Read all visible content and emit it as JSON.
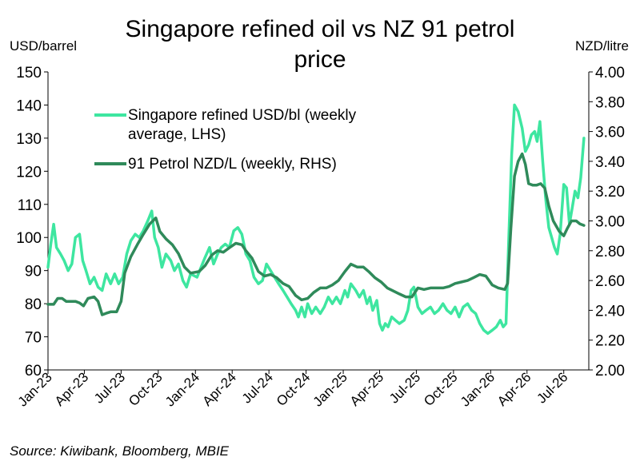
{
  "chart_data": {
    "type": "line",
    "title": "Singapore refined oil vs NZ 91 petrol price",
    "title_lines": [
      "Singapore refined oil vs NZ 91 petrol",
      "price"
    ],
    "ylabel_left": "USD/barrel",
    "ylabel_right": "NZD/litre",
    "ylim_left": [
      60,
      150
    ],
    "ylim_right": [
      2.0,
      4.0
    ],
    "yticks_left": [
      "60",
      "70",
      "80",
      "90",
      "100",
      "110",
      "120",
      "130",
      "140",
      "150"
    ],
    "yticks_right": [
      "2.00",
      "2.20",
      "2.40",
      "2.60",
      "2.80",
      "3.00",
      "3.20",
      "3.40",
      "3.60",
      "3.80",
      "4.00"
    ],
    "x_start": "2023-01",
    "x_end": "2026-09",
    "xticks": [
      "Jan-23",
      "Apr-23",
      "Jul-23",
      "Oct-23",
      "Jan-24",
      "Apr-24",
      "Jul-24",
      "Oct-24",
      "Jan-25",
      "Apr-25",
      "Jul-25",
      "Oct-25",
      "Jan-26",
      "Apr-26",
      "Jul-26"
    ],
    "legend": [
      "Singapore refined USD/bl (weekly average, LHS)",
      "91 Petrol NZD/L (weekly, RHS)"
    ],
    "legend_lines": [
      [
        "Singapore refined USD/bl (weekly",
        "average, LHS)"
      ],
      [
        "91 Petrol NZD/L (weekly, RHS)"
      ]
    ],
    "grid": false,
    "legend_position": "top-left",
    "series": [
      {
        "name": "Singapore refined USD/bl (weekly average, LHS)",
        "axis": "left",
        "color": "#3ee6a0",
        "points": [
          [
            "2023-01-01",
            91
          ],
          [
            "2023-01-08",
            98
          ],
          [
            "2023-01-15",
            104
          ],
          [
            "2023-01-22",
            97
          ],
          [
            "2023-02-01",
            95
          ],
          [
            "2023-02-10",
            93
          ],
          [
            "2023-02-20",
            90
          ],
          [
            "2023-03-01",
            92
          ],
          [
            "2023-03-10",
            100
          ],
          [
            "2023-03-20",
            101
          ],
          [
            "2023-03-28",
            93
          ],
          [
            "2023-04-05",
            90
          ],
          [
            "2023-04-15",
            86
          ],
          [
            "2023-04-25",
            88
          ],
          [
            "2023-05-05",
            85
          ],
          [
            "2023-05-15",
            84
          ],
          [
            "2023-05-25",
            89
          ],
          [
            "2023-06-05",
            86
          ],
          [
            "2023-06-15",
            89
          ],
          [
            "2023-06-25",
            86
          ],
          [
            "2023-07-05",
            88
          ],
          [
            "2023-07-15",
            95
          ],
          [
            "2023-07-25",
            99
          ],
          [
            "2023-08-05",
            101
          ],
          [
            "2023-08-15",
            100
          ],
          [
            "2023-08-25",
            102
          ],
          [
            "2023-09-05",
            105
          ],
          [
            "2023-09-15",
            108
          ],
          [
            "2023-09-22",
            100
          ],
          [
            "2023-10-01",
            97
          ],
          [
            "2023-10-10",
            91
          ],
          [
            "2023-10-20",
            95
          ],
          [
            "2023-11-01",
            93
          ],
          [
            "2023-11-10",
            90
          ],
          [
            "2023-11-20",
            92
          ],
          [
            "2023-12-01",
            87
          ],
          [
            "2023-12-10",
            85
          ],
          [
            "2023-12-20",
            89
          ],
          [
            "2024-01-05",
            88
          ],
          [
            "2024-01-15",
            91
          ],
          [
            "2024-01-25",
            94
          ],
          [
            "2024-02-05",
            97
          ],
          [
            "2024-02-15",
            92
          ],
          [
            "2024-02-25",
            95
          ],
          [
            "2024-03-05",
            97
          ],
          [
            "2024-03-15",
            98
          ],
          [
            "2024-03-25",
            97
          ],
          [
            "2024-04-05",
            102
          ],
          [
            "2024-04-15",
            103
          ],
          [
            "2024-04-25",
            101
          ],
          [
            "2024-05-05",
            95
          ],
          [
            "2024-05-15",
            93
          ],
          [
            "2024-05-25",
            88
          ],
          [
            "2024-06-05",
            86
          ],
          [
            "2024-06-15",
            87
          ],
          [
            "2024-06-25",
            92
          ],
          [
            "2024-07-05",
            90
          ],
          [
            "2024-07-15",
            88
          ],
          [
            "2024-07-25",
            86
          ],
          [
            "2024-08-05",
            84
          ],
          [
            "2024-08-15",
            82
          ],
          [
            "2024-08-25",
            80
          ],
          [
            "2024-09-05",
            78
          ],
          [
            "2024-09-12",
            76
          ],
          [
            "2024-09-20",
            79
          ],
          [
            "2024-09-28",
            76
          ],
          [
            "2024-10-05",
            80
          ],
          [
            "2024-10-15",
            77
          ],
          [
            "2024-10-25",
            79
          ],
          [
            "2024-11-05",
            77
          ],
          [
            "2024-11-15",
            79
          ],
          [
            "2024-11-25",
            82
          ],
          [
            "2024-12-05",
            80
          ],
          [
            "2024-12-15",
            82
          ],
          [
            "2024-12-25",
            80
          ],
          [
            "2025-01-05",
            84
          ],
          [
            "2025-01-12",
            82
          ],
          [
            "2025-01-20",
            86
          ],
          [
            "2025-02-01",
            84
          ],
          [
            "2025-02-10",
            82
          ],
          [
            "2025-02-20",
            84
          ],
          [
            "2025-03-01",
            80
          ],
          [
            "2025-03-08",
            82
          ],
          [
            "2025-03-15",
            78
          ],
          [
            "2025-03-25",
            81
          ],
          [
            "2025-04-01",
            74
          ],
          [
            "2025-04-08",
            72
          ],
          [
            "2025-04-15",
            74
          ],
          [
            "2025-04-22",
            73
          ],
          [
            "2025-05-01",
            76
          ],
          [
            "2025-05-10",
            75
          ],
          [
            "2025-05-20",
            74
          ],
          [
            "2025-06-01",
            75
          ],
          [
            "2025-06-10",
            78
          ],
          [
            "2025-06-18",
            84
          ],
          [
            "2025-06-25",
            85
          ],
          [
            "2025-07-05",
            79
          ],
          [
            "2025-07-15",
            77
          ],
          [
            "2025-07-25",
            78
          ],
          [
            "2025-08-05",
            79
          ],
          [
            "2025-08-15",
            77
          ],
          [
            "2025-08-25",
            78
          ],
          [
            "2025-09-05",
            80
          ],
          [
            "2025-09-15",
            78
          ],
          [
            "2025-09-25",
            77
          ],
          [
            "2025-10-05",
            79
          ],
          [
            "2025-10-15",
            76
          ],
          [
            "2025-10-25",
            79
          ],
          [
            "2025-11-05",
            80
          ],
          [
            "2025-11-15",
            78
          ],
          [
            "2025-11-25",
            77
          ],
          [
            "2025-12-05",
            74
          ],
          [
            "2025-12-15",
            72
          ],
          [
            "2025-12-25",
            71
          ],
          [
            "2026-01-05",
            72
          ],
          [
            "2026-01-15",
            73
          ],
          [
            "2026-01-25",
            75
          ],
          [
            "2026-02-01",
            73
          ],
          [
            "2026-02-08",
            74
          ],
          [
            "2026-02-15",
            100
          ],
          [
            "2026-02-22",
            125
          ],
          [
            "2026-03-01",
            140
          ],
          [
            "2026-03-10",
            138
          ],
          [
            "2026-03-20",
            133
          ],
          [
            "2026-03-28",
            126
          ],
          [
            "2026-04-05",
            128
          ],
          [
            "2026-04-12",
            131
          ],
          [
            "2026-04-20",
            132
          ],
          [
            "2026-04-26",
            129
          ],
          [
            "2026-05-03",
            135
          ],
          [
            "2026-05-10",
            123
          ],
          [
            "2026-05-17",
            112
          ],
          [
            "2026-05-25",
            103
          ],
          [
            "2026-06-01",
            100
          ],
          [
            "2026-06-08",
            97
          ],
          [
            "2026-06-15",
            95
          ],
          [
            "2026-06-22",
            101
          ],
          [
            "2026-07-01",
            116
          ],
          [
            "2026-07-08",
            115
          ],
          [
            "2026-07-15",
            104
          ],
          [
            "2026-07-22",
            109
          ],
          [
            "2026-07-29",
            114
          ],
          [
            "2026-08-05",
            112
          ],
          [
            "2026-08-12",
            118
          ],
          [
            "2026-08-20",
            130
          ]
        ]
      },
      {
        "name": "91 Petrol NZD/L (weekly, RHS)",
        "axis": "right",
        "color": "#2f8a5a",
        "points": [
          [
            "2023-01-01",
            2.44
          ],
          [
            "2023-01-15",
            2.44
          ],
          [
            "2023-01-25",
            2.48
          ],
          [
            "2023-02-05",
            2.48
          ],
          [
            "2023-02-15",
            2.46
          ],
          [
            "2023-02-28",
            2.46
          ],
          [
            "2023-03-10",
            2.46
          ],
          [
            "2023-03-20",
            2.45
          ],
          [
            "2023-03-30",
            2.43
          ],
          [
            "2023-04-10",
            2.48
          ],
          [
            "2023-04-25",
            2.49
          ],
          [
            "2023-05-05",
            2.46
          ],
          [
            "2023-05-15",
            2.37
          ],
          [
            "2023-05-25",
            2.38
          ],
          [
            "2023-06-05",
            2.39
          ],
          [
            "2023-06-20",
            2.39
          ],
          [
            "2023-07-01",
            2.46
          ],
          [
            "2023-07-10",
            2.65
          ],
          [
            "2023-07-25",
            2.76
          ],
          [
            "2023-08-10",
            2.84
          ],
          [
            "2023-08-25",
            2.91
          ],
          [
            "2023-09-10",
            2.98
          ],
          [
            "2023-09-25",
            3.02
          ],
          [
            "2023-10-05",
            2.93
          ],
          [
            "2023-10-20",
            2.88
          ],
          [
            "2023-11-05",
            2.84
          ],
          [
            "2023-11-20",
            2.78
          ],
          [
            "2023-12-05",
            2.69
          ],
          [
            "2023-12-20",
            2.65
          ],
          [
            "2024-01-10",
            2.66
          ],
          [
            "2024-01-25",
            2.7
          ],
          [
            "2024-02-10",
            2.77
          ],
          [
            "2024-02-25",
            2.8
          ],
          [
            "2024-03-10",
            2.79
          ],
          [
            "2024-03-25",
            2.82
          ],
          [
            "2024-04-10",
            2.85
          ],
          [
            "2024-04-25",
            2.84
          ],
          [
            "2024-05-05",
            2.8
          ],
          [
            "2024-05-20",
            2.75
          ],
          [
            "2024-06-05",
            2.66
          ],
          [
            "2024-06-20",
            2.63
          ],
          [
            "2024-07-05",
            2.64
          ],
          [
            "2024-07-20",
            2.62
          ],
          [
            "2024-08-05",
            2.58
          ],
          [
            "2024-08-20",
            2.56
          ],
          [
            "2024-09-05",
            2.5
          ],
          [
            "2024-09-20",
            2.47
          ],
          [
            "2024-10-05",
            2.48
          ],
          [
            "2024-10-20",
            2.52
          ],
          [
            "2024-11-05",
            2.55
          ],
          [
            "2024-11-20",
            2.55
          ],
          [
            "2024-12-05",
            2.57
          ],
          [
            "2024-12-20",
            2.6
          ],
          [
            "2025-01-05",
            2.66
          ],
          [
            "2025-01-20",
            2.71
          ],
          [
            "2025-02-05",
            2.69
          ],
          [
            "2025-02-20",
            2.69
          ],
          [
            "2025-03-05",
            2.66
          ],
          [
            "2025-03-20",
            2.62
          ],
          [
            "2025-04-05",
            2.59
          ],
          [
            "2025-04-20",
            2.55
          ],
          [
            "2025-05-05",
            2.53
          ],
          [
            "2025-05-20",
            2.51
          ],
          [
            "2025-06-05",
            2.49
          ],
          [
            "2025-06-20",
            2.49
          ],
          [
            "2025-07-05",
            2.55
          ],
          [
            "2025-07-20",
            2.54
          ],
          [
            "2025-08-05",
            2.55
          ],
          [
            "2025-08-20",
            2.55
          ],
          [
            "2025-09-05",
            2.55
          ],
          [
            "2025-09-20",
            2.56
          ],
          [
            "2025-10-05",
            2.58
          ],
          [
            "2025-10-20",
            2.59
          ],
          [
            "2025-11-05",
            2.6
          ],
          [
            "2025-11-20",
            2.62
          ],
          [
            "2025-12-05",
            2.64
          ],
          [
            "2025-12-20",
            2.63
          ],
          [
            "2026-01-05",
            2.57
          ],
          [
            "2026-01-20",
            2.55
          ],
          [
            "2026-02-05",
            2.54
          ],
          [
            "2026-02-12",
            2.58
          ],
          [
            "2026-02-20",
            2.95
          ],
          [
            "2026-03-01",
            3.3
          ],
          [
            "2026-03-10",
            3.4
          ],
          [
            "2026-03-20",
            3.45
          ],
          [
            "2026-03-28",
            3.38
          ],
          [
            "2026-04-05",
            3.25
          ],
          [
            "2026-04-15",
            3.24
          ],
          [
            "2026-04-25",
            3.24
          ],
          [
            "2026-05-05",
            3.25
          ],
          [
            "2026-05-15",
            3.22
          ],
          [
            "2026-05-25",
            3.1
          ],
          [
            "2026-06-05",
            3.0
          ],
          [
            "2026-06-20",
            2.93
          ],
          [
            "2026-07-01",
            2.9
          ],
          [
            "2026-07-10",
            2.95
          ],
          [
            "2026-07-20",
            3.0
          ],
          [
            "2026-08-01",
            3.0
          ],
          [
            "2026-08-10",
            2.98
          ],
          [
            "2026-08-20",
            2.97
          ]
        ]
      }
    ],
    "source": "Source: Kiwibank, Bloomberg, MBIE"
  }
}
